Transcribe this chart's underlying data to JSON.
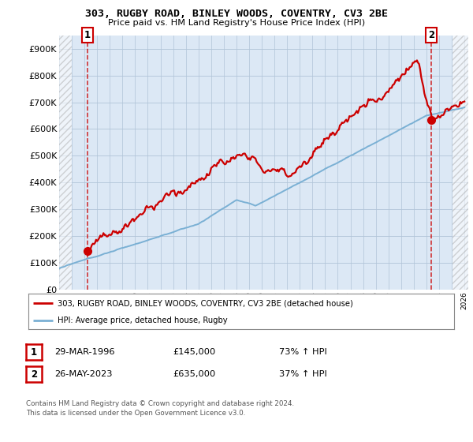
{
  "title_line1": "303, RUGBY ROAD, BINLEY WOODS, COVENTRY, CV3 2BE",
  "title_line2": "Price paid vs. HM Land Registry's House Price Index (HPI)",
  "ylim": [
    0,
    950000
  ],
  "yticks": [
    0,
    100000,
    200000,
    300000,
    400000,
    500000,
    600000,
    700000,
    800000,
    900000
  ],
  "ytick_labels": [
    "£0",
    "£100K",
    "£200K",
    "£300K",
    "£400K",
    "£500K",
    "£600K",
    "£700K",
    "£800K",
    "£900K"
  ],
  "hpi_color": "#7ab0d4",
  "price_color": "#cc0000",
  "marker1_date": 1996.24,
  "marker1_value": 145000,
  "marker2_date": 2023.4,
  "marker2_value": 635000,
  "annotation1": "1",
  "annotation2": "2",
  "legend_line1": "303, RUGBY ROAD, BINLEY WOODS, COVENTRY, CV3 2BE (detached house)",
  "legend_line2": "HPI: Average price, detached house, Rugby",
  "table_row1": [
    "1",
    "29-MAR-1996",
    "£145,000",
    "73% ↑ HPI"
  ],
  "table_row2": [
    "2",
    "26-MAY-2023",
    "£635,000",
    "37% ↑ HPI"
  ],
  "footer": "Contains HM Land Registry data © Crown copyright and database right 2024.\nThis data is licensed under the Open Government Licence v3.0.",
  "bg_color": "#dce8f5",
  "grid_color": "#b0c4d8"
}
